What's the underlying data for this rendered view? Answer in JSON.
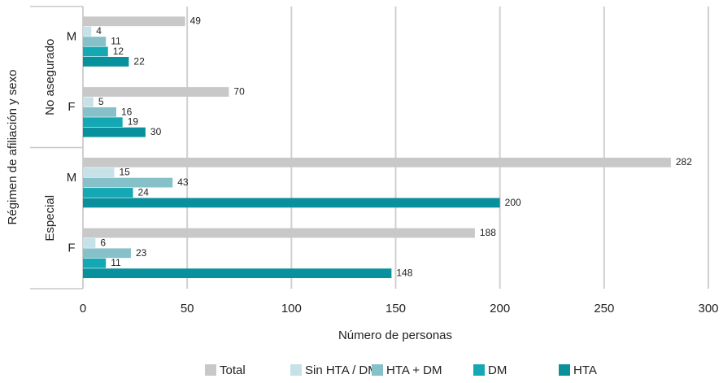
{
  "chart_data": {
    "type": "bar",
    "orientation": "horizontal",
    "xlabel": "Número de personas",
    "ylabel": "Régimen de afiliación y sexo",
    "groups": [
      {
        "name": "No asegurado",
        "categories": [
          "M",
          "F"
        ]
      },
      {
        "name": "Especial",
        "categories": [
          "M",
          "F"
        ]
      }
    ],
    "series": [
      {
        "name": "Total",
        "color": "#c8c8c8",
        "values": [
          49,
          70,
          282,
          188
        ]
      },
      {
        "name": "Sin HTA / DM",
        "color": "#c6e1e7",
        "values": [
          4,
          5,
          15,
          6
        ]
      },
      {
        "name": "HTA + DM",
        "color": "#86c0c9",
        "values": [
          11,
          16,
          43,
          23
        ]
      },
      {
        "name": "DM",
        "color": "#14a8b4",
        "values": [
          12,
          19,
          24,
          11
        ]
      },
      {
        "name": "HTA",
        "color": "#08919d",
        "values": [
          22,
          30,
          200,
          148
        ]
      }
    ],
    "xlim": [
      0,
      300
    ],
    "xticks": [
      0,
      50,
      100,
      150,
      200,
      250,
      300
    ],
    "grid": true,
    "legend": "bottom"
  }
}
